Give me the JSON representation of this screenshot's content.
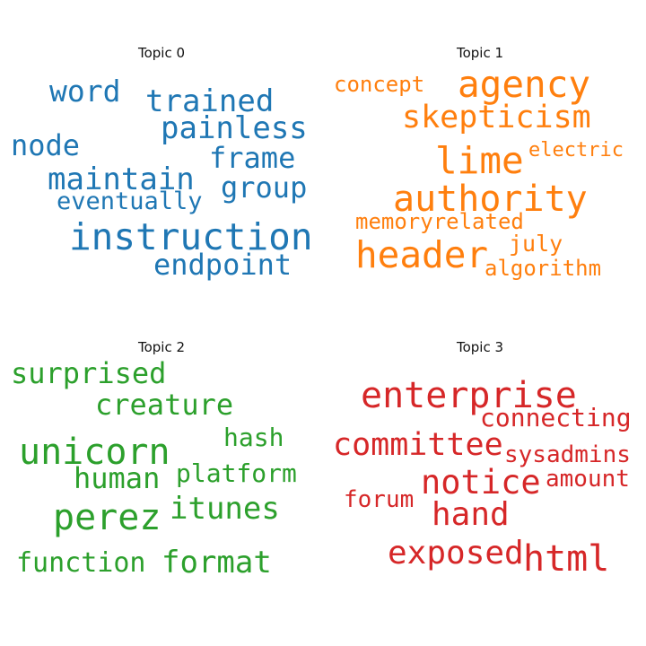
{
  "chart_data": [
    {
      "type": "wordcloud",
      "title": "Topic 0",
      "color": "#1f77b4",
      "words": [
        {
          "text": "word",
          "weight": 0.62
        },
        {
          "text": "trained",
          "weight": 0.7
        },
        {
          "text": "painless",
          "weight": 0.7
        },
        {
          "text": "node",
          "weight": 0.66
        },
        {
          "text": "frame",
          "weight": 0.66
        },
        {
          "text": "maintain",
          "weight": 0.7
        },
        {
          "text": "group",
          "weight": 0.66
        },
        {
          "text": "eventually",
          "weight": 0.58
        },
        {
          "text": "instruction",
          "weight": 0.86
        },
        {
          "text": "endpoint",
          "weight": 0.66
        }
      ]
    },
    {
      "type": "wordcloud",
      "title": "Topic 1",
      "color": "#ff7f0e",
      "words": [
        {
          "text": "concept",
          "weight": 0.5
        },
        {
          "text": "agency",
          "weight": 0.86
        },
        {
          "text": "skepticism",
          "weight": 0.74
        },
        {
          "text": "lime",
          "weight": 0.86
        },
        {
          "text": "electric",
          "weight": 0.46
        },
        {
          "text": "authority",
          "weight": 0.86
        },
        {
          "text": "memoryrelated",
          "weight": 0.54
        },
        {
          "text": "header",
          "weight": 0.86
        },
        {
          "text": "july",
          "weight": 0.54
        },
        {
          "text": "algorithm",
          "weight": 0.54
        }
      ]
    },
    {
      "type": "wordcloud",
      "title": "Topic 2",
      "color": "#2ca02c",
      "words": [
        {
          "text": "surprised",
          "weight": 0.66
        },
        {
          "text": "creature",
          "weight": 0.7
        },
        {
          "text": "hash",
          "weight": 0.62
        },
        {
          "text": "unicorn",
          "weight": 0.86
        },
        {
          "text": "human",
          "weight": 0.7
        },
        {
          "text": "platform",
          "weight": 0.62
        },
        {
          "text": "perez",
          "weight": 0.86
        },
        {
          "text": "itunes",
          "weight": 0.7
        },
        {
          "text": "function",
          "weight": 0.62
        },
        {
          "text": "format",
          "weight": 0.7
        }
      ]
    },
    {
      "type": "wordcloud",
      "title": "Topic 3",
      "color": "#d62728",
      "words": [
        {
          "text": "enterprise",
          "weight": 0.86
        },
        {
          "text": "connecting",
          "weight": 0.62
        },
        {
          "text": "committee",
          "weight": 0.74
        },
        {
          "text": "sysadmins",
          "weight": 0.58
        },
        {
          "text": "notice",
          "weight": 0.82
        },
        {
          "text": "amount",
          "weight": 0.58
        },
        {
          "text": "forum",
          "weight": 0.58
        },
        {
          "text": "hand",
          "weight": 0.78
        },
        {
          "text": "exposed",
          "weight": 0.78
        },
        {
          "text": "html",
          "weight": 0.86
        }
      ]
    }
  ]
}
